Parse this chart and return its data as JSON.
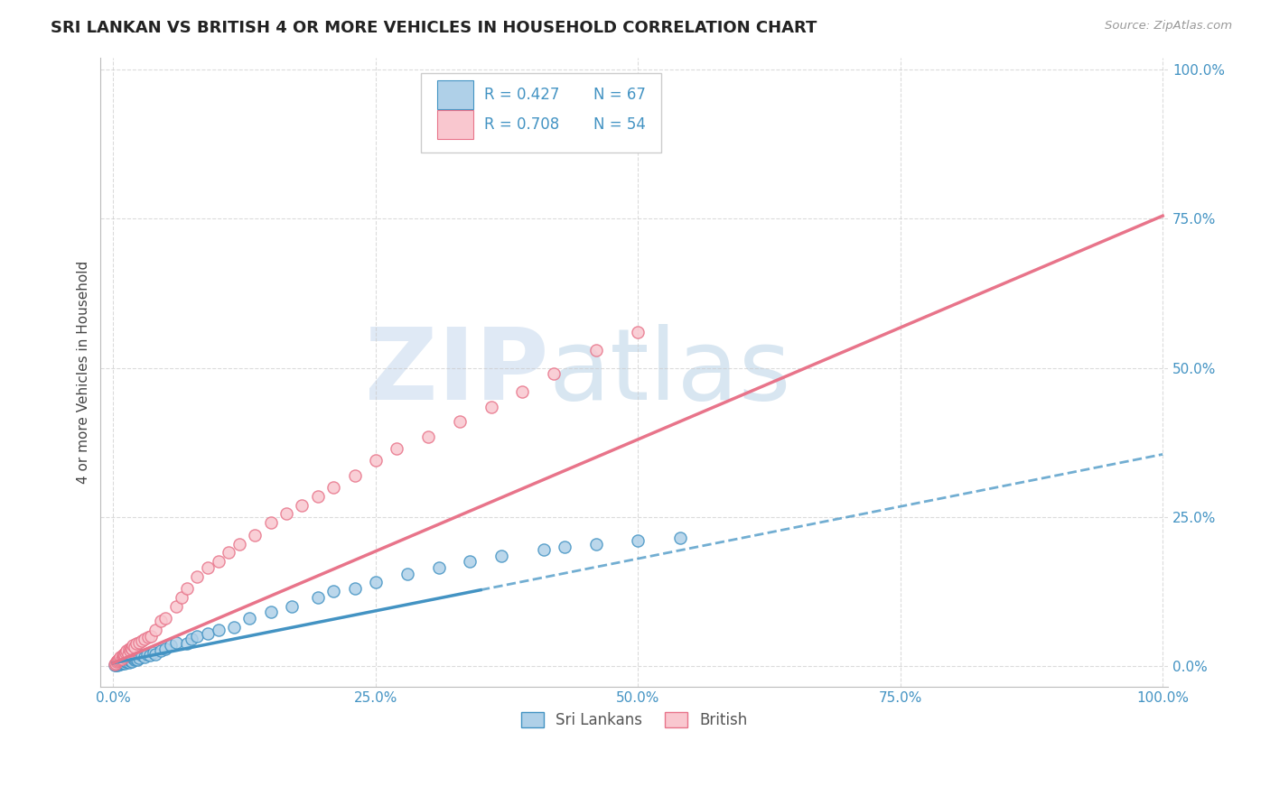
{
  "title": "SRI LANKAN VS BRITISH 4 OR MORE VEHICLES IN HOUSEHOLD CORRELATION CHART",
  "source": "Source: ZipAtlas.com",
  "ylabel": "4 or more Vehicles in Household",
  "legend_labels": [
    "Sri Lankans",
    "British"
  ],
  "sri_lankan_R": 0.427,
  "sri_lankan_N": 67,
  "british_R": 0.708,
  "british_N": 54,
  "color_blue_fill": "#afd0e8",
  "color_blue_edge": "#4393c3",
  "color_pink_fill": "#f9c7cf",
  "color_pink_edge": "#e8748a",
  "color_blue_line": "#4393c3",
  "color_pink_line": "#e8748a",
  "background_color": "#ffffff",
  "grid_color": "#cccccc",
  "watermark_zip": "ZIP",
  "watermark_atlas": "atlas",
  "title_color": "#222222",
  "axis_label_color": "#4393c3",
  "tick_color": "#4393c3",
  "sl_x": [
    0.001,
    0.002,
    0.003,
    0.003,
    0.004,
    0.004,
    0.005,
    0.005,
    0.006,
    0.006,
    0.007,
    0.007,
    0.008,
    0.008,
    0.009,
    0.009,
    0.01,
    0.01,
    0.011,
    0.011,
    0.012,
    0.012,
    0.013,
    0.014,
    0.015,
    0.015,
    0.016,
    0.017,
    0.018,
    0.019,
    0.02,
    0.021,
    0.022,
    0.023,
    0.025,
    0.027,
    0.03,
    0.032,
    0.035,
    0.038,
    0.04,
    0.045,
    0.05,
    0.055,
    0.06,
    0.07,
    0.075,
    0.08,
    0.09,
    0.1,
    0.115,
    0.13,
    0.15,
    0.17,
    0.195,
    0.21,
    0.23,
    0.25,
    0.28,
    0.31,
    0.34,
    0.37,
    0.41,
    0.43,
    0.46,
    0.5,
    0.54
  ],
  "sl_y": [
    0.002,
    0.001,
    0.003,
    0.004,
    0.002,
    0.005,
    0.003,
    0.006,
    0.004,
    0.007,
    0.003,
    0.008,
    0.005,
    0.009,
    0.004,
    0.01,
    0.006,
    0.011,
    0.005,
    0.012,
    0.007,
    0.013,
    0.008,
    0.01,
    0.006,
    0.012,
    0.009,
    0.011,
    0.008,
    0.013,
    0.01,
    0.012,
    0.015,
    0.011,
    0.013,
    0.018,
    0.015,
    0.02,
    0.018,
    0.022,
    0.02,
    0.025,
    0.028,
    0.035,
    0.04,
    0.038,
    0.045,
    0.05,
    0.055,
    0.06,
    0.065,
    0.08,
    0.09,
    0.1,
    0.115,
    0.125,
    0.13,
    0.14,
    0.155,
    0.165,
    0.175,
    0.185,
    0.195,
    0.2,
    0.205,
    0.21,
    0.215
  ],
  "br_x": [
    0.001,
    0.002,
    0.003,
    0.004,
    0.005,
    0.006,
    0.007,
    0.008,
    0.009,
    0.01,
    0.01,
    0.011,
    0.012,
    0.013,
    0.014,
    0.015,
    0.016,
    0.017,
    0.018,
    0.019,
    0.02,
    0.022,
    0.025,
    0.027,
    0.03,
    0.033,
    0.036,
    0.04,
    0.045,
    0.05,
    0.06,
    0.065,
    0.07,
    0.08,
    0.09,
    0.1,
    0.11,
    0.12,
    0.135,
    0.15,
    0.165,
    0.18,
    0.195,
    0.21,
    0.23,
    0.25,
    0.27,
    0.3,
    0.33,
    0.36,
    0.39,
    0.42,
    0.46,
    0.5
  ],
  "br_y": [
    0.003,
    0.005,
    0.007,
    0.009,
    0.01,
    0.012,
    0.015,
    0.012,
    0.018,
    0.015,
    0.02,
    0.018,
    0.022,
    0.025,
    0.02,
    0.028,
    0.025,
    0.03,
    0.028,
    0.035,
    0.032,
    0.038,
    0.04,
    0.042,
    0.045,
    0.048,
    0.05,
    0.06,
    0.075,
    0.08,
    0.1,
    0.115,
    0.13,
    0.15,
    0.165,
    0.175,
    0.19,
    0.205,
    0.22,
    0.24,
    0.255,
    0.27,
    0.285,
    0.3,
    0.32,
    0.345,
    0.365,
    0.385,
    0.41,
    0.435,
    0.46,
    0.49,
    0.53,
    0.56
  ],
  "xlim": [
    0.0,
    1.0
  ],
  "ylim": [
    0.0,
    1.0
  ],
  "xticks": [
    0.0,
    0.25,
    0.5,
    0.75,
    1.0
  ],
  "yticks": [
    0.0,
    0.25,
    0.5,
    0.75,
    1.0
  ],
  "xtick_labels": [
    "0.0%",
    "25.0%",
    "50.0%",
    "75.0%",
    "100.0%"
  ],
  "ytick_labels": [
    "0.0%",
    "25.0%",
    "50.0%",
    "75.0%",
    "100.0%"
  ],
  "blue_line_solid_end": 0.35,
  "blue_line_intercept": 0.005,
  "blue_line_slope": 0.35,
  "pink_line_intercept": 0.005,
  "pink_line_slope": 0.75
}
